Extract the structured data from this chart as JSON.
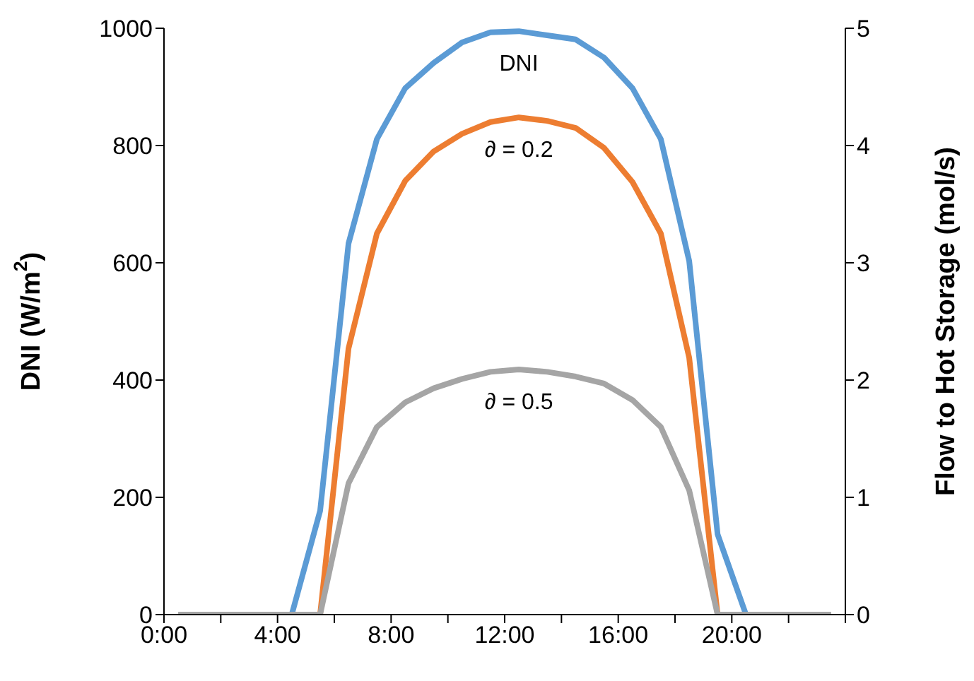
{
  "chart_data": {
    "type": "line",
    "ylabel": "DNI (W/m$^{2}$)",
    "y2label": "Flow to Hot Storage (mol/s)",
    "x": [
      0.5,
      1.5,
      2.5,
      3.5,
      4.5,
      5.5,
      6.5,
      7.5,
      8.5,
      9.5,
      10.5,
      11.5,
      12.5,
      13.5,
      14.5,
      15.5,
      16.5,
      17.5,
      18.5,
      19.5,
      20.5,
      21.5,
      22.5,
      23.5
    ],
    "xlim": [
      0,
      24
    ],
    "xticks": [
      {
        "value": 0,
        "label": "0:00"
      },
      {
        "value": 2,
        "label": null
      },
      {
        "value": 4,
        "label": "4:00"
      },
      {
        "value": 6,
        "label": null
      },
      {
        "value": 8,
        "label": "8:00"
      },
      {
        "value": 10,
        "label": null
      },
      {
        "value": 12,
        "label": "12:00"
      },
      {
        "value": 14,
        "label": null
      },
      {
        "value": 16,
        "label": "16:00"
      },
      {
        "value": 18,
        "label": null
      },
      {
        "value": 20,
        "label": "20:00"
      },
      {
        "value": 22,
        "label": null
      },
      {
        "value": 24,
        "label": null
      }
    ],
    "ylim": [
      0,
      1000
    ],
    "yticks": [
      0,
      200,
      400,
      600,
      800,
      1000
    ],
    "y2lim": [
      0,
      5
    ],
    "y2ticks": [
      0,
      1,
      2,
      3,
      4,
      5
    ],
    "grid": false,
    "legend": false,
    "marker": "none",
    "line_style": "solid",
    "series": [
      {
        "name": "DNI",
        "color": "#5b9bd5",
        "values": [
          null,
          null,
          null,
          null,
          0,
          177,
          633,
          811,
          898,
          941,
          976,
          993,
          995,
          988,
          981,
          950,
          898,
          811,
          603,
          137,
          0,
          0,
          null,
          null
        ]
      },
      {
        "name": "∂ = 0.2",
        "color": "#ed7d31",
        "axis": "y2",
        "values": [
          null,
          null,
          null,
          null,
          0,
          0,
          2.27,
          3.25,
          3.7,
          3.95,
          4.1,
          4.2,
          4.24,
          4.21,
          4.15,
          3.98,
          3.69,
          3.25,
          2.19,
          0,
          0,
          null,
          null,
          null
        ]
      },
      {
        "name": "∂ = 0.5",
        "color": "#a5a5a5",
        "axis": "y2",
        "values": [
          0,
          0,
          0,
          0,
          0,
          0,
          1.12,
          1.6,
          1.81,
          1.93,
          2.01,
          2.07,
          2.09,
          2.07,
          2.03,
          1.97,
          1.83,
          1.6,
          1.06,
          0,
          0,
          0,
          0,
          0
        ]
      }
    ]
  }
}
